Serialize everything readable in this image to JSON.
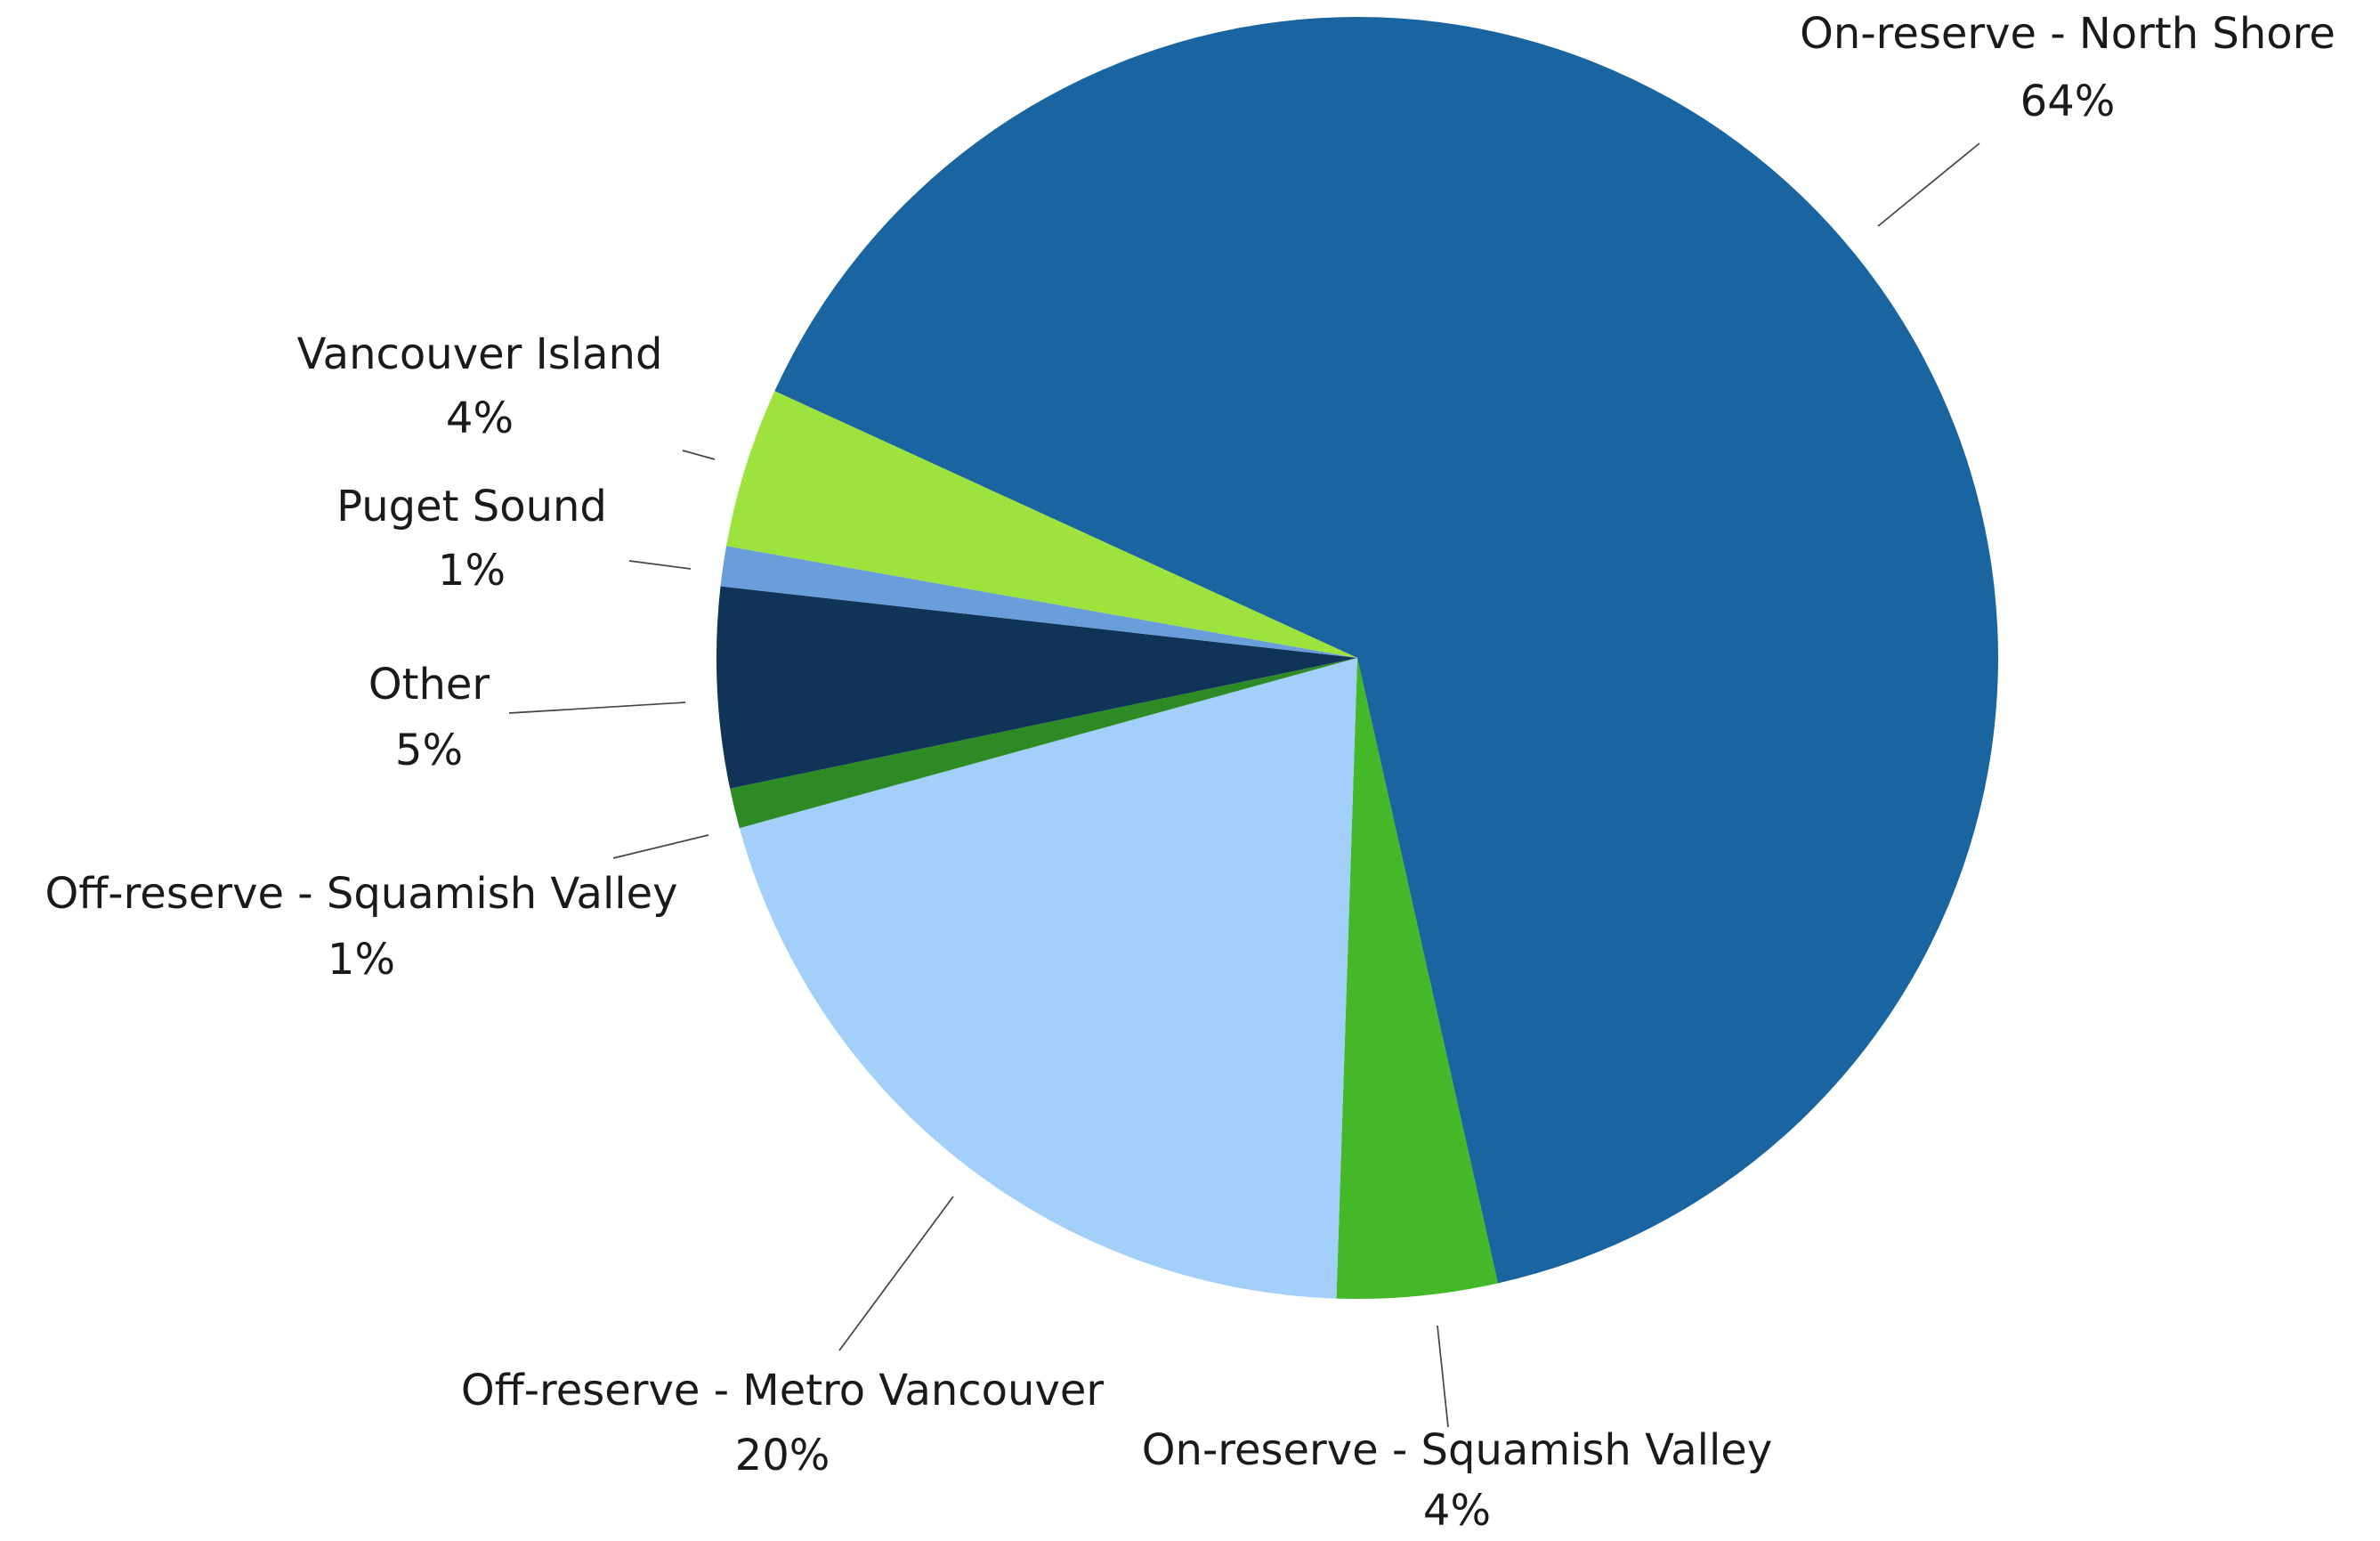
{
  "chart_data": {
    "type": "pie",
    "categories": [
      "On-reserve - North Shore",
      "On-reserve - Squamish Valley",
      "Off-reserve - Metro Vancouver",
      "Off-reserve - Squamish Valley",
      "Other",
      "Puget Sound",
      "Vancouver Island"
    ],
    "values": [
      64,
      4,
      20,
      1,
      5,
      1,
      4
    ],
    "value_labels": [
      "64%",
      "4%",
      "20%",
      "1%",
      "5%",
      "1%",
      "4%"
    ],
    "colors": [
      "#1a64a0",
      "#45b82a",
      "#a3cffb",
      "#2e8a24",
      "#0f3457",
      "#6a9edb",
      "#9ee23e"
    ]
  }
}
